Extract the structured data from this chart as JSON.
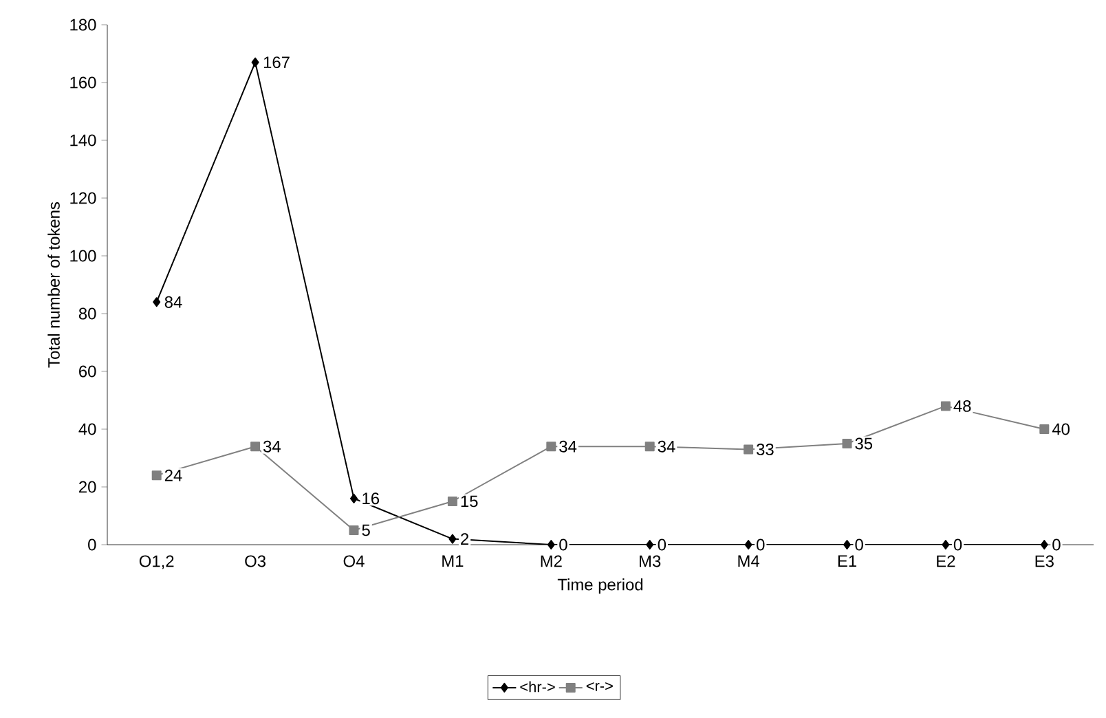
{
  "chart_data": {
    "type": "line",
    "xlabel": "Time period",
    "ylabel": "Total number of tokens",
    "categories": [
      "O1,2",
      "O3",
      "O4",
      "M1",
      "M2",
      "M3",
      "M4",
      "E1",
      "E2",
      "E3"
    ],
    "series": [
      {
        "name": "<hr->",
        "color": "#000000",
        "marker": "diamond",
        "values": [
          84,
          167,
          16,
          2,
          0,
          0,
          0,
          0,
          0,
          0
        ]
      },
      {
        "name": "<r->",
        "color": "#808080",
        "marker": "square",
        "values": [
          24,
          34,
          5,
          15,
          34,
          34,
          33,
          35,
          48,
          40
        ]
      }
    ],
    "ylim": [
      0,
      180
    ],
    "yticks": [
      0,
      20,
      40,
      60,
      80,
      100,
      120,
      140,
      160,
      180
    ],
    "grid": false,
    "legend": "bottom",
    "data_labels": true,
    "line_style": "solid"
  }
}
